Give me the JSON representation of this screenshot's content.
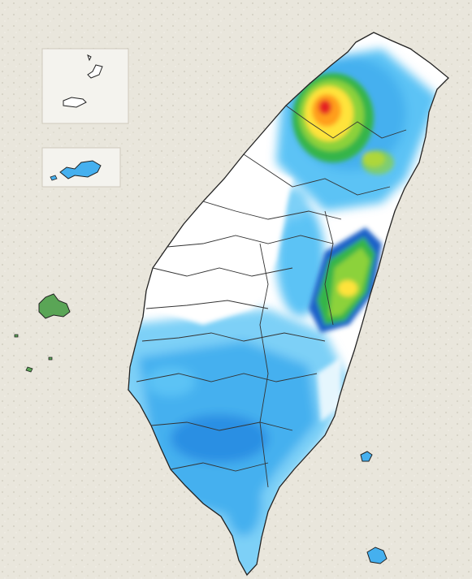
{
  "map": {
    "background_color": "#e9e6dc",
    "land_color": "#ffffff",
    "border_color": "#222222",
    "inset_background": "#f4f3ee",
    "rain_scale_colors": [
      "#9fe4fb",
      "#5cc3f5",
      "#2b8fe3",
      "#1f62c9",
      "#36b54a",
      "#8cd23a",
      "#ffe33a",
      "#ff9e1e",
      "#e52421"
    ],
    "highlight_colors": {
      "northern_heavy_core": "#e52421",
      "eastern_rain_band": "#36b54a",
      "southern_rain_area": "#2b8fe3"
    },
    "features": [
      "main-island",
      "matsu-islands-inset",
      "kinmen-inset",
      "penghu-islands",
      "green-island",
      "orchid-island",
      "county-boundaries"
    ]
  }
}
